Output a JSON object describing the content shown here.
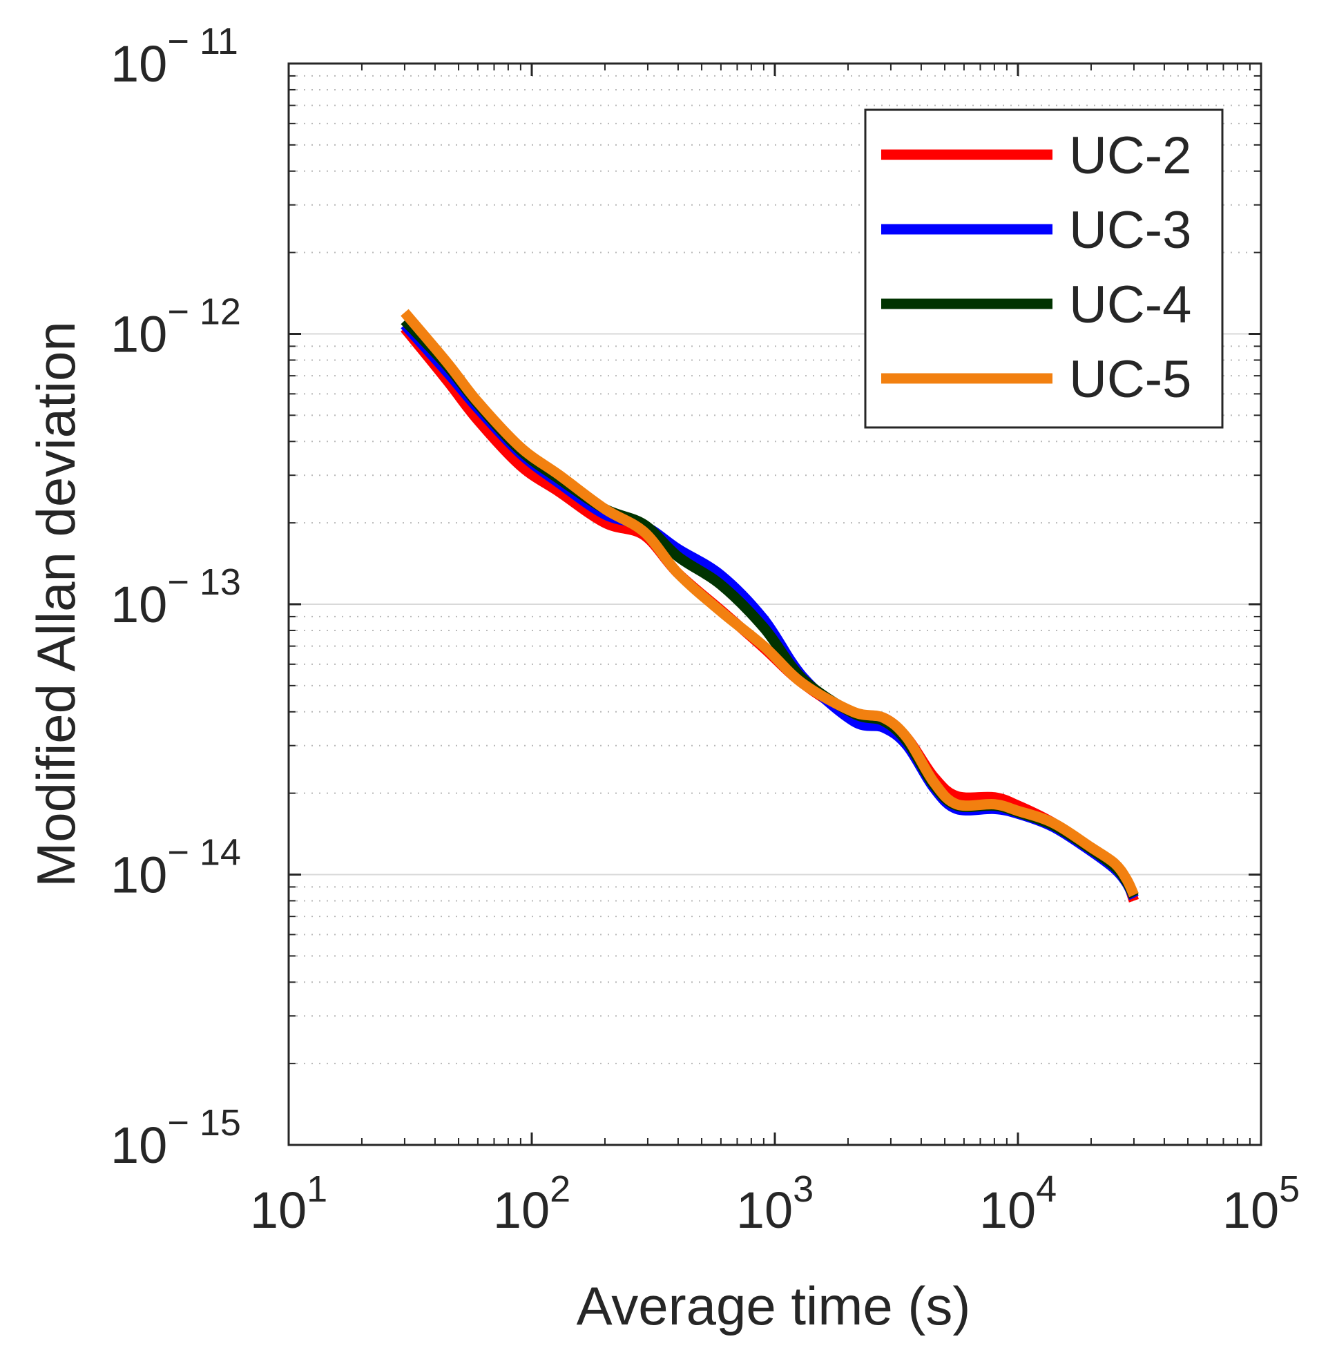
{
  "chart_data": {
    "type": "line",
    "xscale": "log",
    "yscale": "log",
    "xlabel": "Average time (s)",
    "ylabel": "Modified Allan deviation",
    "xlim": [
      10,
      100000
    ],
    "ylim": [
      1e-15,
      1e-11
    ],
    "grid": true,
    "legend_position": "top-right",
    "x_ticks": [
      {
        "base": "10",
        "exp": "1",
        "value": 10
      },
      {
        "base": "10",
        "exp": "2",
        "value": 100
      },
      {
        "base": "10",
        "exp": "3",
        "value": 1000
      },
      {
        "base": "10",
        "exp": "4",
        "value": 10000
      },
      {
        "base": "10",
        "exp": "5",
        "value": 100000
      }
    ],
    "y_ticks": [
      {
        "base": "10",
        "exp": "− 11",
        "value": 1e-11
      },
      {
        "base": "10",
        "exp": "− 12",
        "value": 1e-12
      },
      {
        "base": "10",
        "exp": "− 13",
        "value": 1e-13
      },
      {
        "base": "10",
        "exp": "− 14",
        "value": 1e-14
      },
      {
        "base": "10",
        "exp": "− 15",
        "value": 1e-15
      }
    ],
    "series": [
      {
        "name": "UC-2",
        "color": "#ff0000",
        "x": [
          30,
          45,
          60,
          90,
          130,
          200,
          290,
          400,
          600,
          900,
          1300,
          2100,
          2800,
          3500,
          4500,
          5600,
          8000,
          10000,
          14000,
          20000,
          25000,
          28000,
          30000
        ],
        "y": [
          1.05e-12,
          6.7e-13,
          4.8e-13,
          3.25e-13,
          2.6e-13,
          2e-13,
          1.8e-13,
          1.3e-13,
          9.5e-14,
          6.9e-14,
          5.1e-14,
          3.9e-14,
          3.8e-14,
          3.2e-14,
          2.3e-14,
          1.95e-14,
          1.93e-14,
          1.8e-14,
          1.55e-14,
          1.25e-14,
          1.08e-14,
          9.5e-15,
          8e-15
        ]
      },
      {
        "name": "UC-3",
        "color": "#0000ff",
        "x": [
          30,
          45,
          60,
          90,
          130,
          200,
          290,
          400,
          600,
          900,
          1300,
          2100,
          2800,
          3500,
          4500,
          5600,
          8000,
          10000,
          14000,
          20000,
          25000,
          28000,
          30000
        ],
        "y": [
          1.08e-12,
          7.2e-13,
          5.3e-13,
          3.6e-13,
          2.8e-13,
          2.15e-13,
          1.95e-13,
          1.6e-13,
          1.28e-13,
          8.8e-14,
          5.4e-14,
          3.7e-14,
          3.5e-14,
          3e-14,
          2.1e-14,
          1.75e-14,
          1.75e-14,
          1.68e-14,
          1.5e-14,
          1.22e-14,
          1.05e-14,
          9.3e-15,
          8.2e-15
        ]
      },
      {
        "name": "UC-4",
        "color": "#003300",
        "x": [
          30,
          45,
          60,
          90,
          130,
          200,
          290,
          400,
          600,
          900,
          1300,
          2100,
          2800,
          3500,
          4500,
          5600,
          8000,
          10000,
          14000,
          20000,
          25000,
          28000,
          30000
        ],
        "y": [
          1.12e-12,
          7.6e-13,
          5.5e-13,
          3.7e-13,
          2.9e-13,
          2.25e-13,
          1.97e-13,
          1.5e-13,
          1.18e-13,
          8.2e-14,
          5.3e-14,
          3.95e-14,
          3.7e-14,
          3.1e-14,
          2.15e-14,
          1.8e-14,
          1.8e-14,
          1.7e-14,
          1.52e-14,
          1.24e-14,
          1.07e-14,
          9.4e-15,
          8.3e-15
        ]
      },
      {
        "name": "UC-5",
        "color": "#f28010",
        "x": [
          30,
          45,
          60,
          90,
          130,
          200,
          290,
          400,
          600,
          900,
          1300,
          2100,
          2800,
          3500,
          4500,
          5600,
          8000,
          10000,
          14000,
          20000,
          25000,
          28000,
          30000
        ],
        "y": [
          1.2e-12,
          7.8e-13,
          5.6e-13,
          3.8e-13,
          3e-13,
          2.25e-13,
          1.85e-13,
          1.3e-13,
          9.4e-14,
          7e-14,
          5.1e-14,
          4e-14,
          3.8e-14,
          3.2e-14,
          2.2e-14,
          1.82e-14,
          1.82e-14,
          1.72e-14,
          1.55e-14,
          1.26e-14,
          1.1e-14,
          9.6e-15,
          8.4e-15
        ]
      }
    ]
  }
}
